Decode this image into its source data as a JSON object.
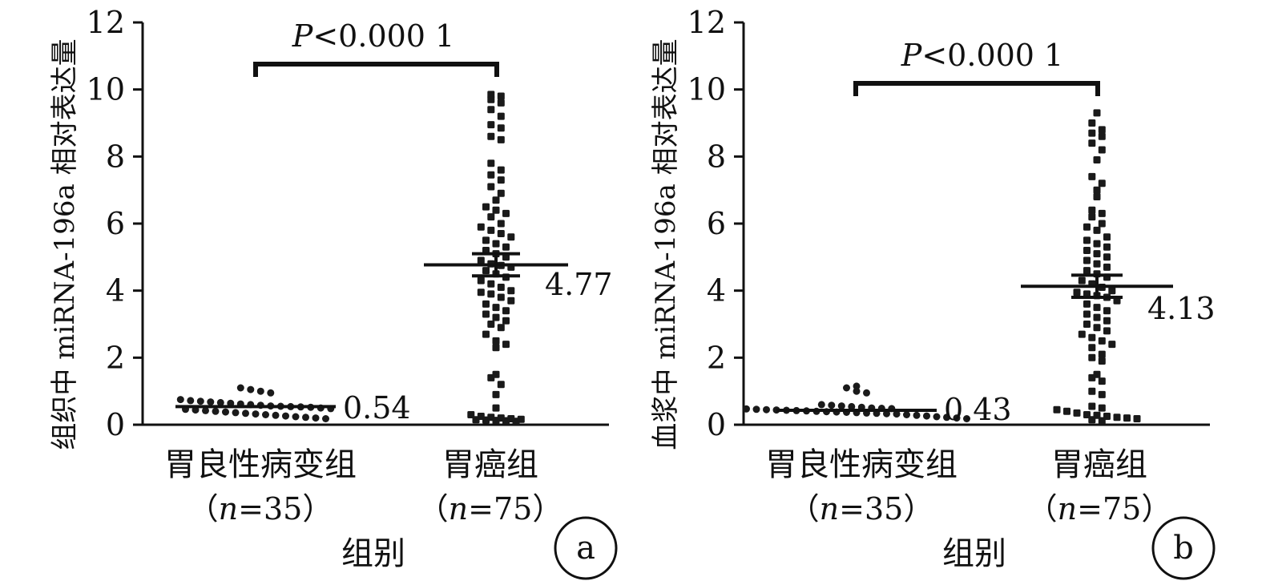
{
  "chart_data": [
    {
      "type": "scatter",
      "panel_label": "a",
      "ylabel": "组织中 miRNA-196a 相对表达量",
      "xlabel": "组别",
      "ylim": [
        0,
        12
      ],
      "yticks": [
        "0",
        "2",
        "4",
        "6",
        "8",
        "10",
        "12"
      ],
      "significance": {
        "prefix": "P",
        "text": "<0.000 1"
      },
      "groups": [
        {
          "name": "胃良性病变组",
          "n_prefix": "（",
          "n_var": "n",
          "n_value": "=35）",
          "mean": 0.54,
          "mean_label": "0.54",
          "sem": 0.04,
          "values": [
            0.75,
            0.72,
            0.7,
            0.68,
            0.66,
            0.64,
            0.62,
            0.6,
            0.58,
            0.56,
            0.55,
            0.54,
            0.53,
            0.52,
            0.5,
            0.48,
            0.46,
            0.44,
            0.42,
            0.4,
            0.38,
            0.36,
            0.34,
            0.32,
            0.3,
            0.28,
            0.26,
            0.24,
            0.22,
            0.2,
            0.18,
            1.1,
            1.05,
            1.0,
            0.95
          ]
        },
        {
          "name": "胃癌组",
          "n_prefix": "（",
          "n_var": "n",
          "n_value": "=75）",
          "mean": 4.77,
          "mean_label": "4.77",
          "sem": 0.33,
          "values": [
            9.85,
            9.8,
            9.7,
            9.6,
            9.4,
            9.2,
            8.95,
            8.85,
            8.6,
            8.5,
            7.8,
            7.6,
            7.45,
            7.3,
            7.1,
            6.9,
            6.7,
            6.5,
            6.4,
            6.3,
            6.2,
            6.0,
            5.9,
            5.8,
            5.7,
            5.6,
            5.5,
            5.4,
            5.3,
            5.2,
            5.1,
            5.0,
            4.9,
            4.8,
            4.75,
            4.7,
            4.6,
            4.5,
            4.4,
            4.3,
            4.2,
            4.1,
            4.0,
            3.95,
            3.9,
            3.8,
            3.7,
            3.6,
            3.5,
            3.4,
            3.3,
            3.2,
            3.1,
            3.0,
            2.9,
            2.7,
            2.5,
            2.4,
            2.3,
            1.5,
            1.4,
            1.2,
            0.9,
            0.5,
            0.3,
            0.25,
            0.22,
            0.2,
            0.18,
            0.16,
            0.15,
            0.14,
            0.13,
            0.12,
            0.1
          ]
        }
      ]
    },
    {
      "type": "scatter",
      "panel_label": "b",
      "ylabel": "血浆中 miRNA-196a 相对表达量",
      "xlabel": "组别",
      "ylim": [
        0,
        12
      ],
      "yticks": [
        "0",
        "2",
        "4",
        "6",
        "8",
        "10",
        "12"
      ],
      "significance": {
        "prefix": "P",
        "text": "<0.000 1"
      },
      "groups": [
        {
          "name": "胃良性病变组",
          "n_prefix": "（",
          "n_var": "n",
          "n_value": "=35）",
          "mean": 0.43,
          "mean_label": "0.43",
          "sem": 0.04,
          "values": [
            0.6,
            0.58,
            0.56,
            0.54,
            0.52,
            0.5,
            0.49,
            0.48,
            0.47,
            0.46,
            0.45,
            0.44,
            0.43,
            0.42,
            0.41,
            0.4,
            0.39,
            0.38,
            0.37,
            0.36,
            0.35,
            0.34,
            0.33,
            0.32,
            0.3,
            0.28,
            0.26,
            0.24,
            0.22,
            0.2,
            0.18,
            1.15,
            1.1,
            1.0,
            0.95
          ]
        },
        {
          "name": "胃癌组",
          "n_prefix": "（",
          "n_var": "n",
          "n_value": "=75）",
          "mean": 4.13,
          "mean_label": "4.13",
          "sem": 0.33,
          "values": [
            9.3,
            9.0,
            8.8,
            8.7,
            8.6,
            8.4,
            8.2,
            7.9,
            7.4,
            7.2,
            7.0,
            6.8,
            6.4,
            6.3,
            6.2,
            6.0,
            5.9,
            5.8,
            5.6,
            5.5,
            5.4,
            5.3,
            5.2,
            5.1,
            5.0,
            4.9,
            4.8,
            4.7,
            4.6,
            4.5,
            4.4,
            4.3,
            4.2,
            4.1,
            4.0,
            3.95,
            3.9,
            3.85,
            3.8,
            3.7,
            3.6,
            3.5,
            3.4,
            3.3,
            3.2,
            3.1,
            3.0,
            2.9,
            2.8,
            2.7,
            2.6,
            2.5,
            2.4,
            2.3,
            2.1,
            2.0,
            1.9,
            1.5,
            1.4,
            1.3,
            1.0,
            0.9,
            0.55,
            0.5,
            0.45,
            0.4,
            0.35,
            0.3,
            0.28,
            0.25,
            0.22,
            0.2,
            0.18,
            0.15,
            0.12
          ]
        }
      ]
    }
  ]
}
